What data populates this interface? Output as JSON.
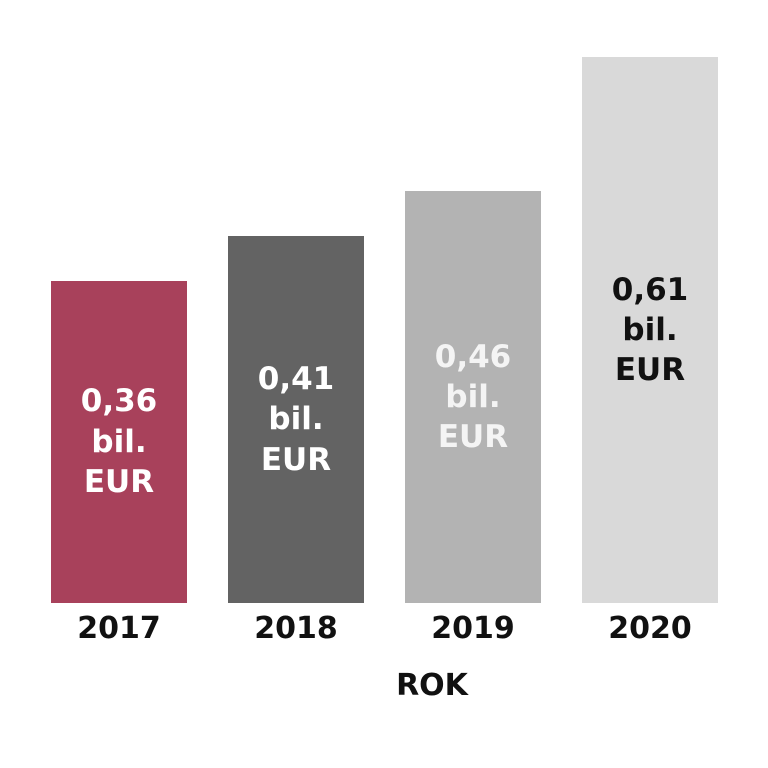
{
  "chart_data": {
    "type": "bar",
    "x_label": "ROK",
    "categories": [
      "2017",
      "2018",
      "2019",
      "2020"
    ],
    "values": [
      0.36,
      0.41,
      0.46,
      0.61
    ],
    "value_labels": [
      "0,36 bil. EUR",
      "0,41 bil. EUR",
      "0,46 bil. EUR",
      "0,61 bil. EUR"
    ],
    "colors": [
      "#a8415b",
      "#636363",
      "#b3b3b3",
      "#d9d9d9"
    ],
    "label_colors": [
      "#ffffff",
      "#ffffff",
      "#f4f4f4",
      "#111111"
    ]
  }
}
